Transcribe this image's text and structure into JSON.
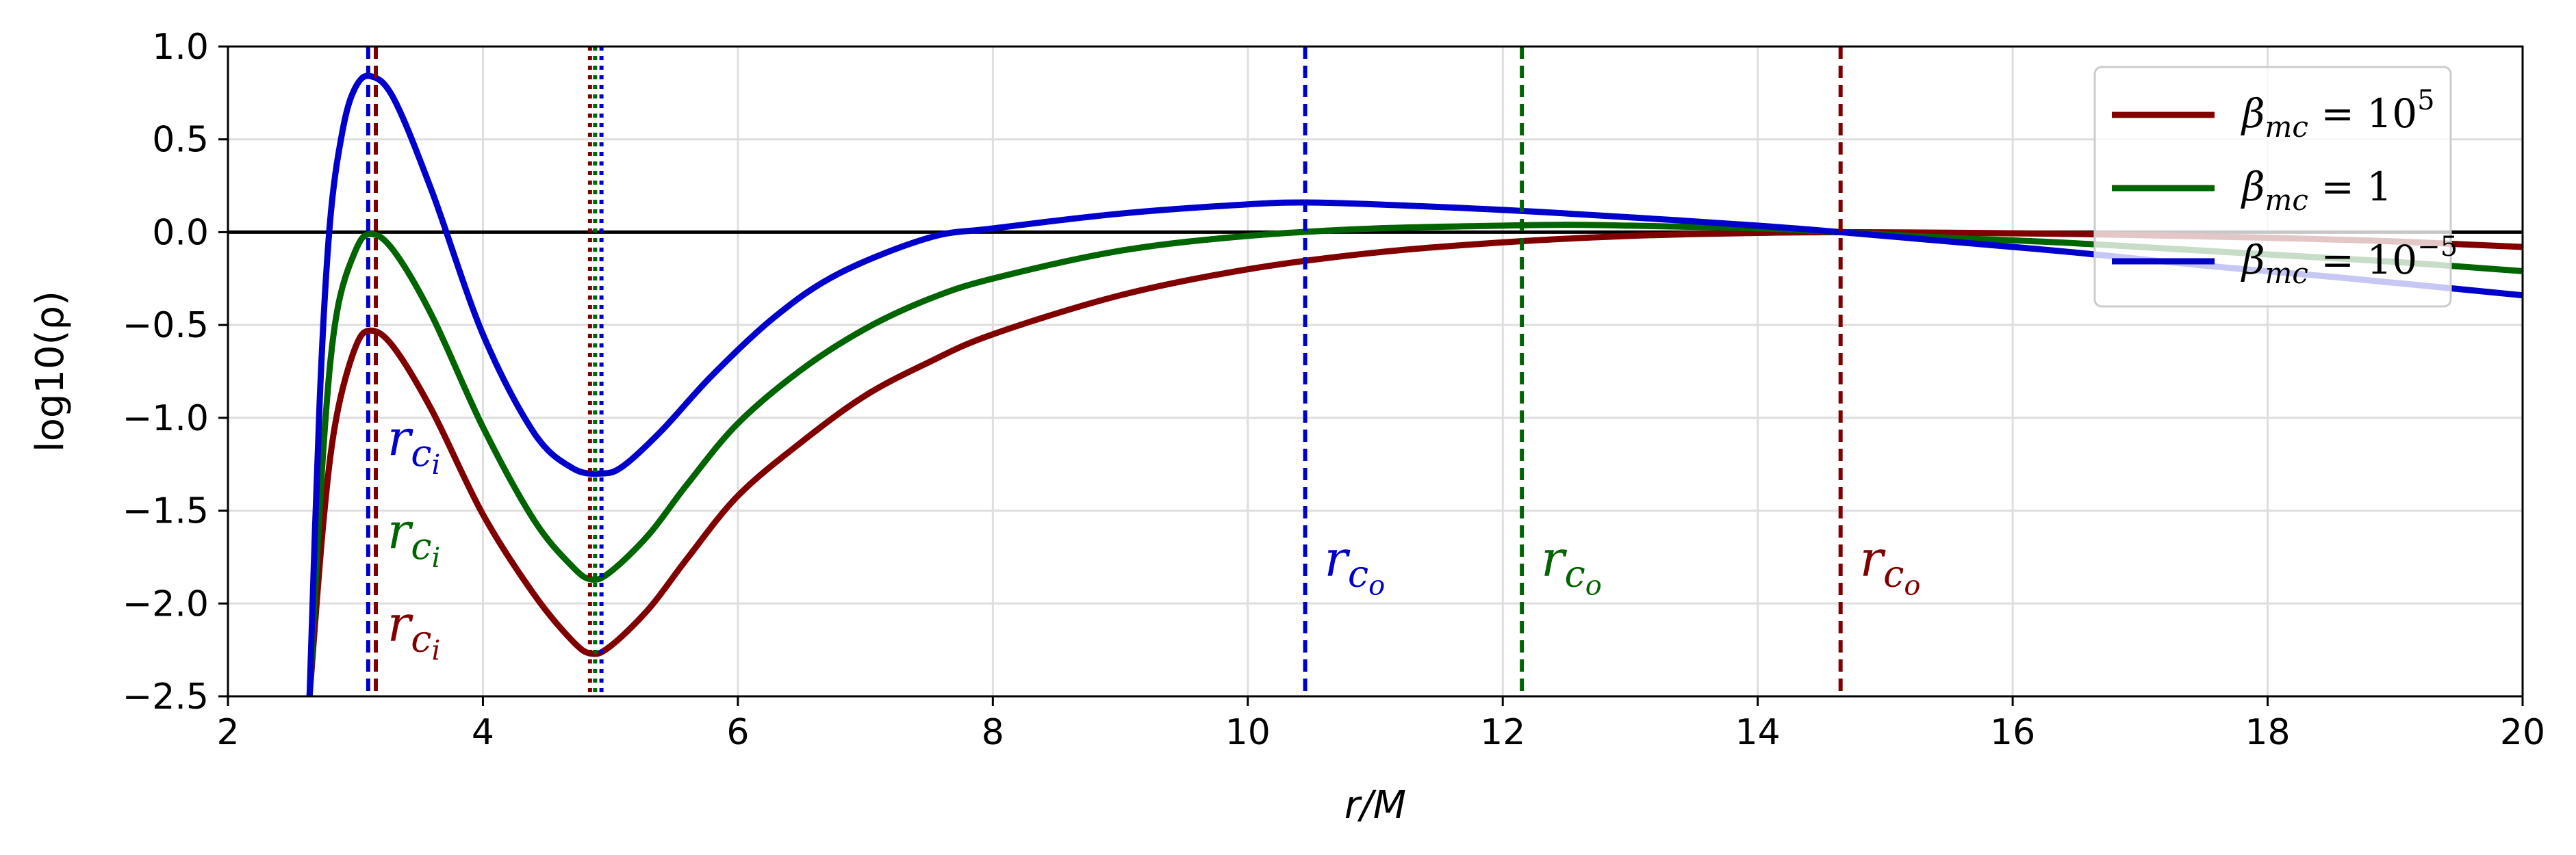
{
  "chart_data": {
    "type": "line",
    "xlabel": "r/M",
    "ylabel": "log10(ρ)",
    "xlim": [
      2,
      20
    ],
    "ylim": [
      -2.5,
      1.0
    ],
    "x_ticks": [
      2,
      4,
      6,
      8,
      10,
      12,
      14,
      16,
      18,
      20
    ],
    "y_ticks": [
      1.0,
      0.5,
      0.0,
      -0.5,
      -1.0,
      -1.5,
      -2.0,
      -2.5
    ],
    "x_tick_labels": [
      "2",
      "4",
      "6",
      "8",
      "10",
      "12",
      "14",
      "16",
      "18",
      "20"
    ],
    "y_tick_labels": [
      "1.0",
      "0.5",
      "0.0",
      "−0.5",
      "−1.0",
      "−1.5",
      "−2.0",
      "−2.5"
    ],
    "grid": true,
    "legend_position": "top-right",
    "colors": {
      "red": "#800000",
      "green": "#006400",
      "blue": "#0000cd",
      "zero_line": "#000000"
    },
    "series": [
      {
        "name": "β_mc = 10^5",
        "legend_main": "β",
        "legend_sub": "mc",
        "legend_eq": " = 10",
        "legend_sup": "5",
        "color": "#800000",
        "x": [
          2.64,
          2.75,
          2.85,
          3.0,
          3.12,
          3.3,
          3.6,
          4.0,
          4.4,
          4.7,
          4.85,
          5.0,
          5.3,
          5.6,
          6.0,
          6.5,
          7.0,
          7.5,
          8.0,
          9.0,
          10.0,
          11.0,
          12.0,
          13.0,
          14.0,
          14.65,
          15.5,
          16.5,
          18.0,
          19.0,
          20.0
        ],
        "y": [
          -2.5,
          -1.55,
          -1.0,
          -0.62,
          -0.53,
          -0.62,
          -0.96,
          -1.52,
          -1.95,
          -2.2,
          -2.27,
          -2.23,
          -2.03,
          -1.76,
          -1.42,
          -1.13,
          -0.88,
          -0.7,
          -0.55,
          -0.34,
          -0.2,
          -0.11,
          -0.055,
          -0.02,
          -0.004,
          0.0,
          -0.003,
          -0.01,
          -0.03,
          -0.05,
          -0.08
        ]
      },
      {
        "name": "β_mc = 1",
        "legend_main": "β",
        "legend_sub": "mc",
        "legend_eq": " = 1",
        "legend_sup": "",
        "color": "#006400",
        "x": [
          2.64,
          2.75,
          2.85,
          3.0,
          3.12,
          3.3,
          3.6,
          4.0,
          4.4,
          4.7,
          4.85,
          5.0,
          5.3,
          5.6,
          6.0,
          6.5,
          7.0,
          7.5,
          8.0,
          9.0,
          10.0,
          11.0,
          12.0,
          12.5,
          13.0,
          14.0,
          14.65,
          15.5,
          16.5,
          18.0,
          19.0,
          20.0
        ],
        "y": [
          -2.5,
          -1.15,
          -0.45,
          -0.1,
          -0.01,
          -0.1,
          -0.45,
          -1.05,
          -1.55,
          -1.8,
          -1.87,
          -1.83,
          -1.63,
          -1.36,
          -1.03,
          -0.74,
          -0.52,
          -0.36,
          -0.25,
          -0.1,
          -0.02,
          0.02,
          0.035,
          0.04,
          0.035,
          0.02,
          0.0,
          -0.03,
          -0.06,
          -0.12,
          -0.16,
          -0.21
        ]
      },
      {
        "name": "β_mc = 10^-5",
        "legend_main": "β",
        "legend_sub": "mc",
        "legend_eq": " = 10",
        "legend_sup": "−5",
        "color": "#0000cd",
        "x": [
          2.64,
          2.72,
          2.8,
          2.9,
          3.0,
          3.12,
          3.3,
          3.6,
          4.0,
          4.4,
          4.7,
          4.93,
          5.1,
          5.4,
          5.8,
          6.3,
          6.8,
          7.5,
          8.0,
          9.0,
          10.0,
          10.45,
          11.0,
          12.0,
          13.0,
          14.0,
          14.65,
          15.5,
          16.5,
          17.5,
          18.5,
          20.0
        ],
        "y": [
          -2.5,
          -0.9,
          0.05,
          0.55,
          0.78,
          0.84,
          0.72,
          0.22,
          -0.55,
          -1.08,
          -1.27,
          -1.3,
          -1.26,
          -1.07,
          -0.77,
          -0.45,
          -0.22,
          -0.03,
          0.02,
          0.1,
          0.15,
          0.16,
          0.15,
          0.12,
          0.08,
          0.035,
          0.0,
          -0.05,
          -0.11,
          -0.18,
          -0.24,
          -0.34
        ]
      }
    ],
    "horizontal_lines": [
      {
        "y": 0.0,
        "color": "#000000"
      }
    ],
    "vertical_lines": [
      {
        "x": 3.1,
        "style": "dashed",
        "color": "#0000cd"
      },
      {
        "x": 3.16,
        "style": "dashed",
        "color": "#800000"
      },
      {
        "x": 4.84,
        "style": "dotted",
        "color": "#800000"
      },
      {
        "x": 4.88,
        "style": "dotted",
        "color": "#006400"
      },
      {
        "x": 4.93,
        "style": "dotted",
        "color": "#0000cd"
      },
      {
        "x": 10.45,
        "style": "dashed",
        "color": "#0000cd"
      },
      {
        "x": 12.15,
        "style": "dashed",
        "color": "#006400"
      },
      {
        "x": 14.65,
        "style": "dashed",
        "color": "#800000"
      }
    ],
    "annotations": [
      {
        "x": 3.25,
        "y": -1.2,
        "main": "r",
        "sub": "c",
        "subsub": "i",
        "color": "#0000cd"
      },
      {
        "x": 3.25,
        "y": -1.7,
        "main": "r",
        "sub": "c",
        "subsub": "i",
        "color": "#006400"
      },
      {
        "x": 3.25,
        "y": -2.2,
        "main": "r",
        "sub": "c",
        "subsub": "i",
        "color": "#800000"
      },
      {
        "x": 10.6,
        "y": -1.85,
        "main": "r",
        "sub": "c",
        "subsub": "o",
        "color": "#0000cd"
      },
      {
        "x": 12.3,
        "y": -1.85,
        "main": "r",
        "sub": "c",
        "subsub": "o",
        "color": "#006400"
      },
      {
        "x": 14.8,
        "y": -1.85,
        "main": "r",
        "sub": "c",
        "subsub": "o",
        "color": "#800000"
      }
    ]
  }
}
